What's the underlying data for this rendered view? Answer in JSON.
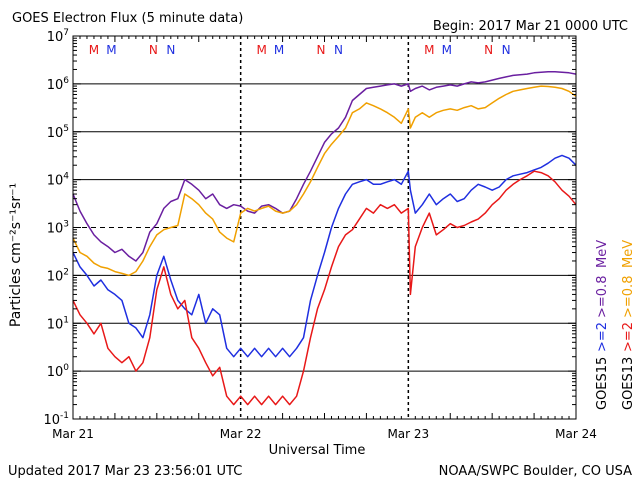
{
  "header": {
    "title": "GOES Electron Flux (5 minute data)",
    "begin": "Begin: 2017 Mar 21 0000 UTC"
  },
  "footer": {
    "updated": "Updated 2017 Mar 23 23:56:01 UTC",
    "credit": "NOAA/SWPC Boulder, CO USA"
  },
  "chart_data": {
    "type": "line",
    "title": "GOES Electron Flux (5 minute data)",
    "xlabel": "Universal Time",
    "ylabel": "Particles cm⁻²s⁻¹sr⁻¹",
    "y_scale": "log",
    "ylim": [
      0.1,
      10000000
    ],
    "xlim": [
      0,
      72
    ],
    "x_units": "hours since 2017 Mar 21 0000 UTC",
    "y_ticks": [
      {
        "value": 0.1,
        "base": "10",
        "exp": "-1"
      },
      {
        "value": 1,
        "base": "10",
        "exp": "0"
      },
      {
        "value": 10,
        "base": "10",
        "exp": "1"
      },
      {
        "value": 100,
        "base": "10",
        "exp": "2"
      },
      {
        "value": 1000,
        "base": "10",
        "exp": "3"
      },
      {
        "value": 10000,
        "base": "10",
        "exp": "4"
      },
      {
        "value": 100000,
        "base": "10",
        "exp": "5"
      },
      {
        "value": 1000000,
        "base": "10",
        "exp": "6"
      },
      {
        "value": 10000000,
        "base": "10",
        "exp": "7"
      }
    ],
    "x_ticks": [
      {
        "hours": 0,
        "label": "Mar 21"
      },
      {
        "hours": 24,
        "label": "Mar 22"
      },
      {
        "hours": 48,
        "label": "Mar 23"
      },
      {
        "hours": 72,
        "label": "Mar 24"
      }
    ],
    "threshold_lines": [
      1000
    ],
    "grid": true,
    "legend_position": "right",
    "legend": [
      {
        "label": "GOES15",
        "color": "#000000"
      },
      {
        "label": ">=2",
        "color": "#1f2fe0"
      },
      {
        "label": ">=0.8",
        "color": "#6a1fa0"
      },
      {
        "label": "MeV",
        "color": "#6a1fa0"
      },
      {
        "label": "GOES13",
        "color": "#000000"
      },
      {
        "label": ">=2",
        "color": "#e81818"
      },
      {
        "label": ">=0.8",
        "color": "#f0a000"
      },
      {
        "label": "MeV",
        "color": "#f0a000"
      }
    ],
    "mn_markers": [
      {
        "hours": 3.0,
        "text": "M",
        "color": "#e81818"
      },
      {
        "hours": 5.5,
        "text": "M",
        "color": "#1f2fe0"
      },
      {
        "hours": 11.5,
        "text": "N",
        "color": "#e81818"
      },
      {
        "hours": 14.0,
        "text": "N",
        "color": "#1f2fe0"
      },
      {
        "hours": 27.0,
        "text": "M",
        "color": "#e81818"
      },
      {
        "hours": 29.5,
        "text": "M",
        "color": "#1f2fe0"
      },
      {
        "hours": 35.5,
        "text": "N",
        "color": "#e81818"
      },
      {
        "hours": 38.0,
        "text": "N",
        "color": "#1f2fe0"
      },
      {
        "hours": 51.0,
        "text": "M",
        "color": "#e81818"
      },
      {
        "hours": 53.5,
        "text": "M",
        "color": "#1f2fe0"
      },
      {
        "hours": 59.5,
        "text": "N",
        "color": "#e81818"
      },
      {
        "hours": 62.0,
        "text": "N",
        "color": "#1f2fe0"
      }
    ],
    "series": [
      {
        "name": "GOES15 >=0.8 MeV",
        "color": "#6a1fa0",
        "x": [
          0,
          1,
          2,
          3,
          4,
          5,
          6,
          7,
          8,
          9,
          10,
          11,
          12,
          13,
          14,
          15,
          16,
          17,
          18,
          19,
          20,
          21,
          22,
          23,
          24,
          25,
          26,
          27,
          28,
          29,
          30,
          31,
          32,
          33,
          34,
          35,
          36,
          37,
          38,
          39,
          40,
          41,
          42,
          43,
          44,
          45,
          46,
          47,
          48,
          48.3,
          49,
          50,
          51,
          52,
          53,
          54,
          55,
          56,
          57,
          58,
          59,
          60,
          61,
          62,
          63,
          64,
          65,
          66,
          67,
          68,
          69,
          70,
          71,
          72
        ],
        "values": [
          5000,
          2200,
          1200,
          700,
          500,
          400,
          300,
          350,
          250,
          200,
          300,
          800,
          1200,
          2500,
          3500,
          4000,
          10000,
          8000,
          6000,
          4000,
          5000,
          3000,
          2500,
          3000,
          2800,
          2200,
          2000,
          2800,
          3000,
          2500,
          2000,
          2200,
          4000,
          8000,
          15000,
          30000,
          60000,
          90000,
          120000,
          200000,
          450000,
          600000,
          800000,
          850000,
          900000,
          950000,
          1000000,
          900000,
          1000000,
          700000,
          800000,
          900000,
          750000,
          850000,
          900000,
          950000,
          900000,
          1000000,
          1100000,
          1050000,
          1100000,
          1200000,
          1300000,
          1400000,
          1500000,
          1550000,
          1600000,
          1700000,
          1750000,
          1800000,
          1800000,
          1750000,
          1700000,
          1600000
        ]
      },
      {
        "name": "GOES13 >=0.8 MeV",
        "color": "#f0a000",
        "x": [
          0,
          1,
          2,
          3,
          4,
          5,
          6,
          7,
          8,
          9,
          10,
          11,
          12,
          13,
          14,
          15,
          16,
          17,
          18,
          19,
          20,
          21,
          22,
          23,
          24,
          25,
          26,
          27,
          28,
          29,
          30,
          31,
          32,
          33,
          34,
          35,
          36,
          37,
          38,
          39,
          40,
          41,
          42,
          43,
          44,
          45,
          46,
          47,
          48,
          48.3,
          49,
          50,
          51,
          52,
          53,
          54,
          55,
          56,
          57,
          58,
          59,
          60,
          61,
          62,
          63,
          64,
          65,
          66,
          67,
          68,
          69,
          70,
          71,
          72
        ],
        "values": [
          600,
          300,
          250,
          180,
          150,
          140,
          120,
          110,
          100,
          120,
          200,
          400,
          700,
          900,
          1000,
          1100,
          5000,
          4000,
          3000,
          2000,
          1500,
          800,
          600,
          500,
          2000,
          2500,
          2200,
          2500,
          2800,
          2200,
          2000,
          2200,
          3000,
          5000,
          9000,
          18000,
          35000,
          55000,
          80000,
          120000,
          250000,
          300000,
          400000,
          350000,
          300000,
          250000,
          200000,
          150000,
          300000,
          120000,
          200000,
          250000,
          200000,
          250000,
          280000,
          300000,
          280000,
          320000,
          350000,
          300000,
          320000,
          400000,
          500000,
          600000,
          700000,
          750000,
          800000,
          850000,
          900000,
          880000,
          850000,
          800000,
          700000,
          550000
        ]
      },
      {
        "name": "GOES15 >=2 MeV",
        "color": "#1f2fe0",
        "x": [
          0,
          1,
          2,
          3,
          4,
          5,
          6,
          7,
          8,
          9,
          10,
          11,
          12,
          13,
          14,
          15,
          16,
          17,
          18,
          19,
          20,
          21,
          22,
          23,
          24,
          25,
          26,
          27,
          28,
          29,
          30,
          31,
          32,
          33,
          34,
          35,
          36,
          37,
          38,
          39,
          40,
          41,
          42,
          43,
          44,
          45,
          46,
          47,
          48,
          48.3,
          49,
          50,
          51,
          52,
          53,
          54,
          55,
          56,
          57,
          58,
          59,
          60,
          61,
          62,
          63,
          64,
          65,
          66,
          67,
          68,
          69,
          70,
          71,
          72
        ],
        "values": [
          300,
          150,
          100,
          60,
          80,
          50,
          40,
          30,
          10,
          8,
          5,
          15,
          100,
          250,
          80,
          30,
          20,
          15,
          40,
          10,
          20,
          15,
          3,
          2,
          3,
          2,
          3,
          2,
          3,
          2,
          3,
          2,
          3,
          5,
          30,
          100,
          300,
          1000,
          2500,
          5000,
          8000,
          9000,
          10000,
          8000,
          8000,
          9000,
          10000,
          8000,
          15000,
          6000,
          2000,
          3000,
          5000,
          3000,
          4000,
          5000,
          3500,
          4000,
          6000,
          8000,
          7000,
          6000,
          7000,
          10000,
          12000,
          13000,
          14000,
          16000,
          18000,
          22000,
          28000,
          32000,
          28000,
          20000
        ]
      },
      {
        "name": "GOES13 >=2 MeV",
        "color": "#e81818",
        "x": [
          0,
          1,
          2,
          3,
          4,
          5,
          6,
          7,
          8,
          9,
          10,
          11,
          12,
          13,
          14,
          15,
          16,
          17,
          18,
          19,
          20,
          21,
          22,
          23,
          24,
          25,
          26,
          27,
          28,
          29,
          30,
          31,
          32,
          33,
          34,
          35,
          36,
          37,
          38,
          39,
          40,
          41,
          42,
          43,
          44,
          45,
          46,
          47,
          48,
          48.3,
          49,
          50,
          51,
          52,
          53,
          54,
          55,
          56,
          57,
          58,
          59,
          60,
          61,
          62,
          63,
          64,
          65,
          66,
          67,
          68,
          69,
          70,
          71,
          72
        ],
        "values": [
          30,
          15,
          10,
          6,
          10,
          3,
          2,
          1.5,
          2,
          1,
          1.5,
          5,
          50,
          150,
          40,
          20,
          30,
          5,
          3,
          1.5,
          0.8,
          1.2,
          0.3,
          0.2,
          0.3,
          0.2,
          0.3,
          0.2,
          0.3,
          0.2,
          0.3,
          0.2,
          0.3,
          1,
          5,
          20,
          50,
          150,
          400,
          700,
          900,
          1500,
          2500,
          2000,
          3000,
          2500,
          3000,
          2000,
          2500,
          40,
          400,
          1000,
          2000,
          700,
          900,
          1200,
          1000,
          1100,
          1300,
          1500,
          2000,
          3000,
          4000,
          6000,
          8000,
          10000,
          12000,
          15000,
          14000,
          12000,
          9000,
          6000,
          4500,
          3000
        ]
      }
    ]
  }
}
